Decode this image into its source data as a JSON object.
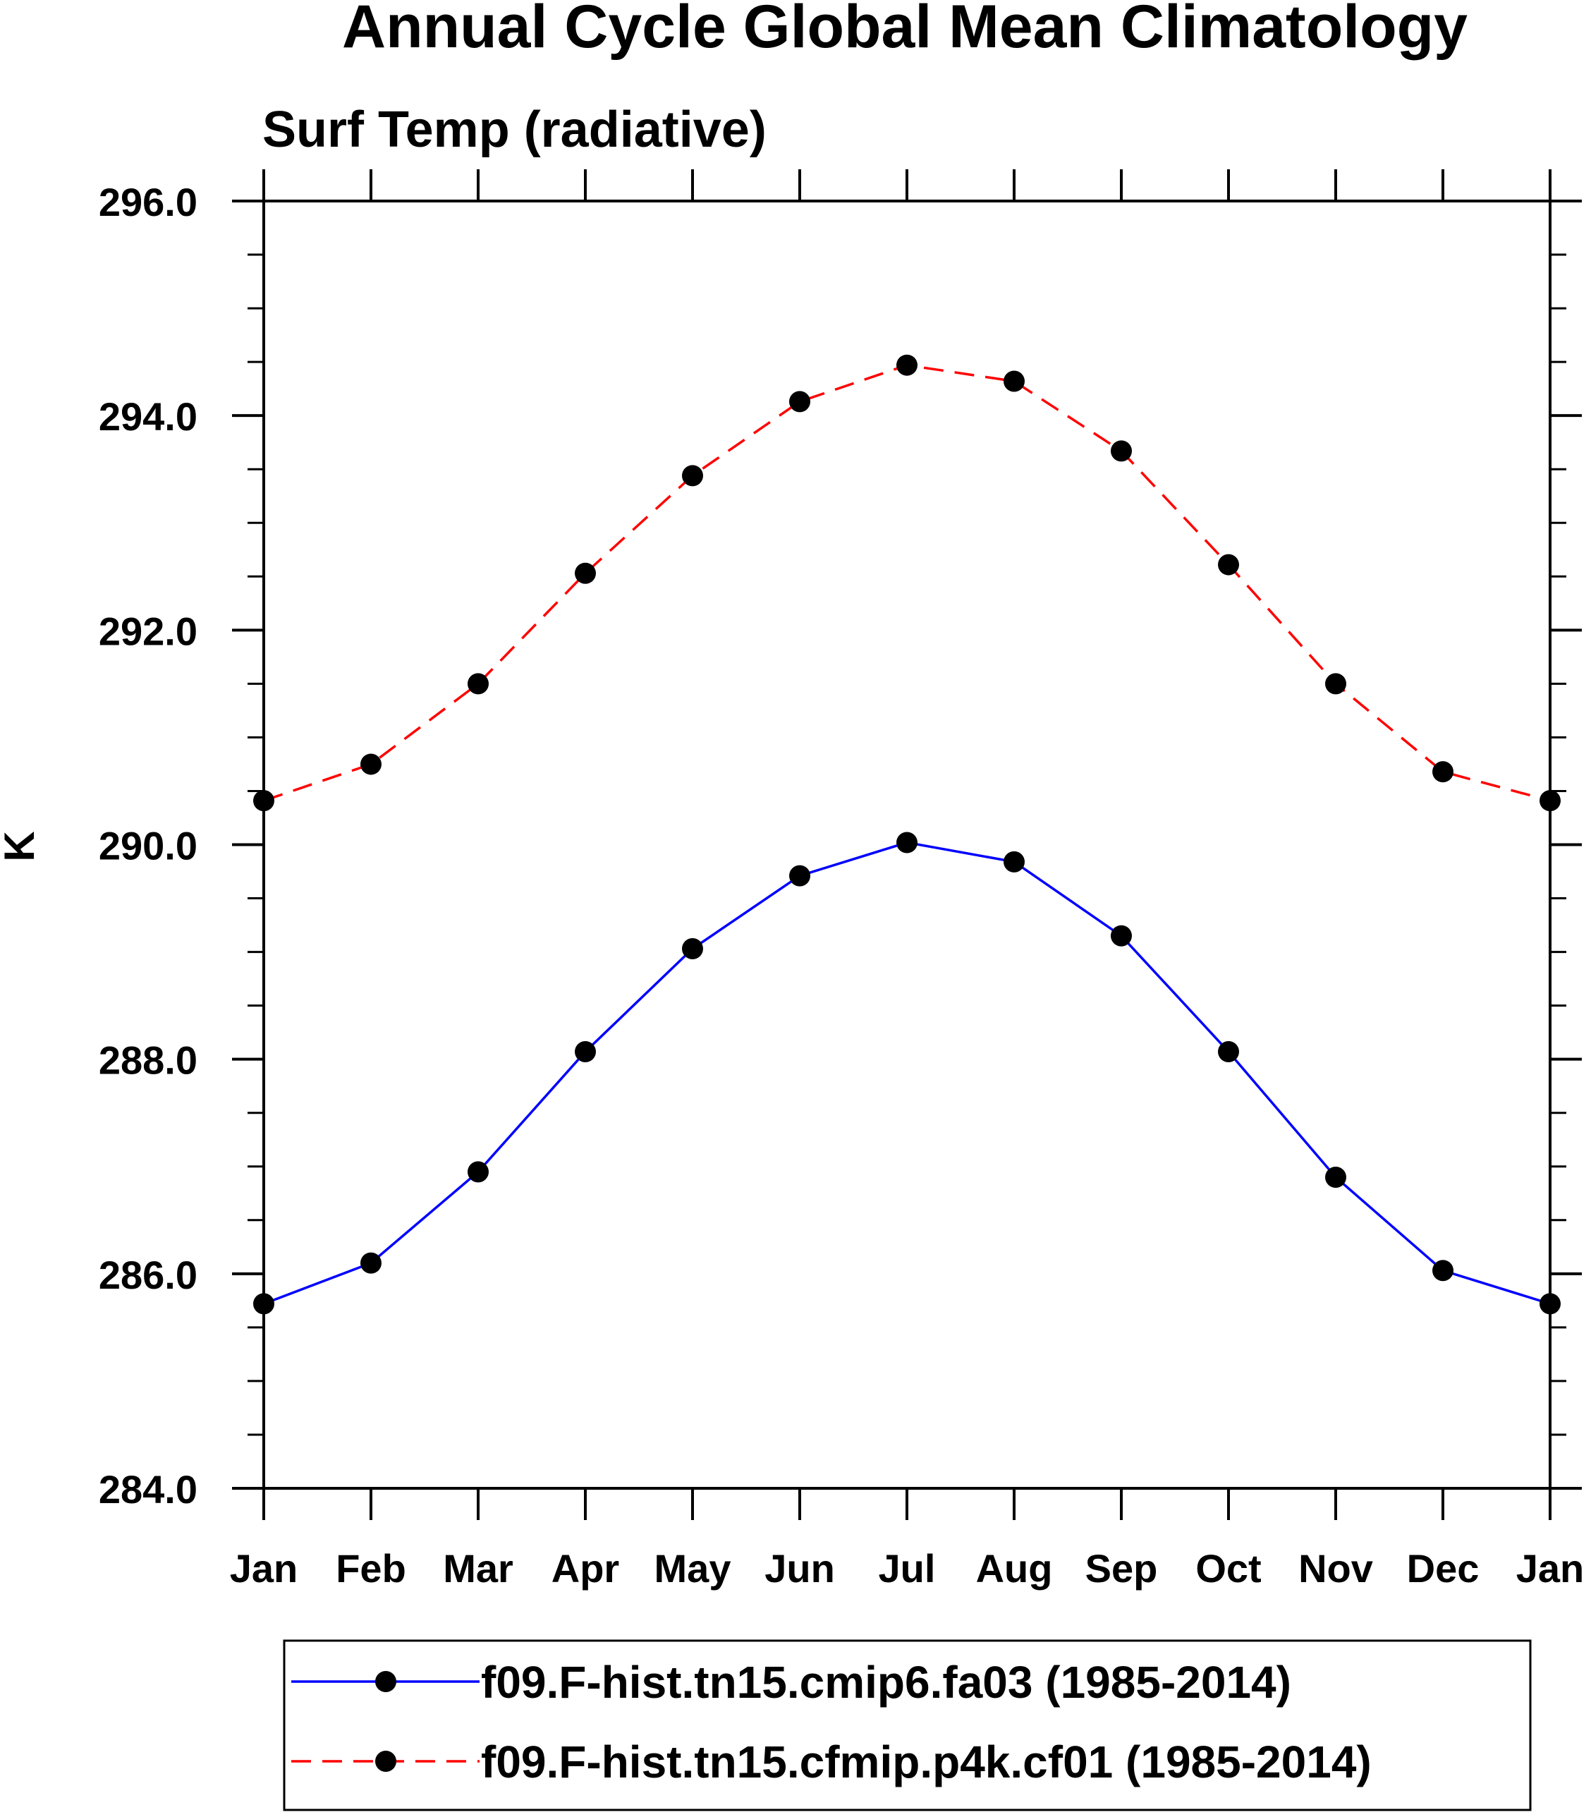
{
  "chart_data": {
    "type": "line",
    "title": "Annual Cycle Global Mean Climatology",
    "subtitle": "Surf Temp (radiative)",
    "xlabel": "",
    "ylabel": "K",
    "ylim": [
      284.0,
      296.0
    ],
    "yticks": [
      284.0,
      286.0,
      288.0,
      290.0,
      292.0,
      294.0,
      296.0
    ],
    "ytick_labels": [
      "284.0",
      "286.0",
      "288.0",
      "290.0",
      "292.0",
      "294.0",
      "296.0"
    ],
    "y_minor_step": 0.5,
    "categories": [
      "Jan",
      "Feb",
      "Mar",
      "Apr",
      "May",
      "Jun",
      "Jul",
      "Aug",
      "Sep",
      "Oct",
      "Nov",
      "Dec",
      "Jan"
    ],
    "grid": false,
    "legend_position": "bottom",
    "series": [
      {
        "name": "f09.F-hist.tn15.cmip6.fa03 (1985-2014)",
        "color": "#0000ff",
        "line_style": "solid",
        "marker": "filled-circle",
        "values": [
          285.72,
          286.1,
          286.95,
          288.07,
          289.03,
          289.71,
          290.02,
          289.84,
          289.15,
          288.07,
          286.9,
          286.03,
          285.72
        ]
      },
      {
        "name": "f09.F-hist.tn15.cfmip.p4k.cf01 (1985-2014)",
        "color": "#ff0000",
        "line_style": "dashed",
        "marker": "filled-circle",
        "values": [
          290.41,
          290.75,
          291.5,
          292.53,
          293.44,
          294.13,
          294.47,
          294.32,
          293.67,
          292.61,
          291.5,
          290.68,
          290.41
        ]
      }
    ]
  }
}
